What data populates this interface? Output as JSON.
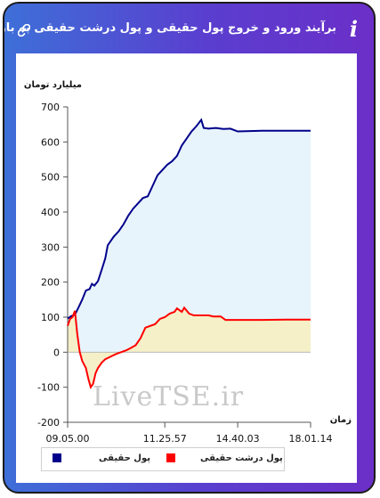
{
  "header": {
    "title": "برآیند ورود و خروج پول حقیقی و پول درشت حقیقی به بازار",
    "info_icon": "i",
    "link_icon": "link-icon"
  },
  "watermark": "LiveTSE.ir",
  "chart_data": {
    "type": "area",
    "title": "برآیند ورود و خروج پول حقیقی و پول درشت حقیقی به بازار",
    "ylabel": "میلیارد تومان",
    "xlabel": "زمان",
    "ylim": [
      -200,
      700
    ],
    "yticks": [
      "-200",
      "-100",
      "0",
      "100",
      "200",
      "300",
      "400",
      "500",
      "600",
      "700"
    ],
    "xticks": [
      "09.05.00",
      "11.25.57",
      "14.40.03",
      "18.01.14"
    ],
    "grid": false,
    "legend_position": "bottom",
    "series": [
      {
        "name": "پول حقیقی",
        "color": "#00008b",
        "fill": "#e8f4fb",
        "points": [
          [
            0,
            96
          ],
          [
            0.015,
            103
          ],
          [
            0.03,
            107
          ],
          [
            0.045,
            128
          ],
          [
            0.06,
            150
          ],
          [
            0.075,
            176
          ],
          [
            0.09,
            180
          ],
          [
            0.1,
            195
          ],
          [
            0.11,
            190
          ],
          [
            0.125,
            203
          ],
          [
            0.14,
            235
          ],
          [
            0.155,
            268
          ],
          [
            0.165,
            305
          ],
          [
            0.18,
            320
          ],
          [
            0.19,
            330
          ],
          [
            0.21,
            345
          ],
          [
            0.23,
            365
          ],
          [
            0.25,
            390
          ],
          [
            0.27,
            410
          ],
          [
            0.29,
            425
          ],
          [
            0.31,
            440
          ],
          [
            0.33,
            445
          ],
          [
            0.35,
            475
          ],
          [
            0.37,
            505
          ],
          [
            0.39,
            520
          ],
          [
            0.41,
            535
          ],
          [
            0.43,
            545
          ],
          [
            0.45,
            560
          ],
          [
            0.47,
            590
          ],
          [
            0.49,
            610
          ],
          [
            0.51,
            630
          ],
          [
            0.53,
            645
          ],
          [
            0.55,
            663
          ],
          [
            0.56,
            640
          ],
          [
            0.58,
            638
          ],
          [
            0.61,
            640
          ],
          [
            0.64,
            637
          ],
          [
            0.67,
            638
          ],
          [
            0.7,
            630
          ],
          [
            0.8,
            632
          ],
          [
            0.9,
            632
          ],
          [
            1.0,
            632
          ]
        ]
      },
      {
        "name": "پول درشت حقیقی",
        "color": "#ff0000",
        "fill": "#f5f0c8",
        "points": [
          [
            0,
            75
          ],
          [
            0.01,
            95
          ],
          [
            0.02,
            100
          ],
          [
            0.03,
            118
          ],
          [
            0.04,
            50
          ],
          [
            0.05,
            0
          ],
          [
            0.06,
            -25
          ],
          [
            0.075,
            -45
          ],
          [
            0.085,
            -75
          ],
          [
            0.095,
            -100
          ],
          [
            0.105,
            -90
          ],
          [
            0.115,
            -60
          ],
          [
            0.125,
            -45
          ],
          [
            0.14,
            -30
          ],
          [
            0.155,
            -20
          ],
          [
            0.17,
            -15
          ],
          [
            0.185,
            -10
          ],
          [
            0.2,
            -5
          ],
          [
            0.22,
            0
          ],
          [
            0.24,
            5
          ],
          [
            0.26,
            12
          ],
          [
            0.28,
            20
          ],
          [
            0.3,
            40
          ],
          [
            0.32,
            70
          ],
          [
            0.34,
            75
          ],
          [
            0.36,
            80
          ],
          [
            0.38,
            95
          ],
          [
            0.4,
            100
          ],
          [
            0.42,
            110
          ],
          [
            0.44,
            115
          ],
          [
            0.45,
            125
          ],
          [
            0.47,
            115
          ],
          [
            0.48,
            127
          ],
          [
            0.5,
            110
          ],
          [
            0.52,
            105
          ],
          [
            0.54,
            105
          ],
          [
            0.58,
            105
          ],
          [
            0.6,
            102
          ],
          [
            0.63,
            102
          ],
          [
            0.65,
            92
          ],
          [
            0.7,
            92
          ],
          [
            0.8,
            92
          ],
          [
            0.9,
            93
          ],
          [
            1.0,
            93
          ]
        ]
      }
    ]
  },
  "legend": {
    "items": [
      {
        "label": "پول حقیقی",
        "color": "#00008b"
      },
      {
        "label": "پول درشت حقیقی",
        "color": "#ff0000"
      }
    ]
  }
}
